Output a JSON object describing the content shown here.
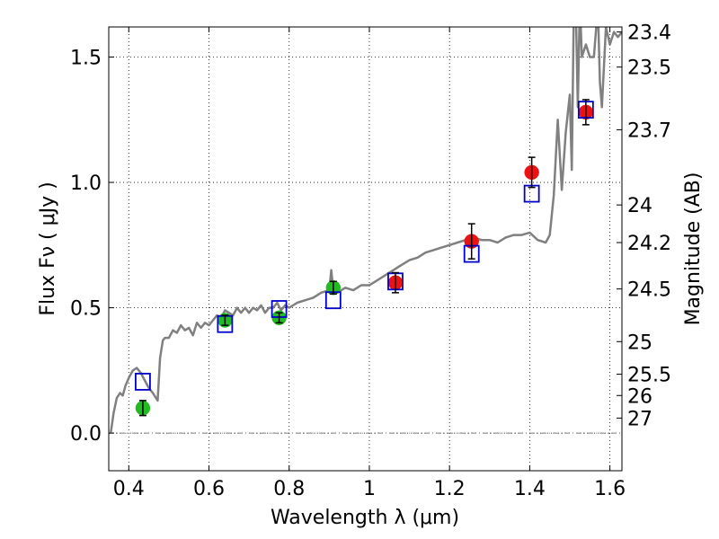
{
  "chart_data": {
    "type": "scatter",
    "xlabel": "Wavelength  λ (μm)",
    "ylabel": "Flux  Fν  ( μJy )",
    "y2label": "Magnitude (AB)",
    "xlim": [
      0.35,
      1.63
    ],
    "ylim": [
      -0.15,
      1.62
    ],
    "xticks": [
      0.4,
      0.6,
      0.8,
      1.0,
      1.2,
      1.4,
      1.6
    ],
    "xtick_labels": [
      "0.4",
      "0.6",
      "0.8",
      "1",
      "1.2",
      "1.4",
      "1.6"
    ],
    "yticks": [
      0.0,
      0.5,
      1.0,
      1.5
    ],
    "ytick_labels": [
      "0.0",
      "0.5",
      "1.0",
      "1.5"
    ],
    "y2ticks": [
      {
        "flux": 1.6,
        "label": "23.4"
      },
      {
        "flux": 1.46,
        "label": "23.5"
      },
      {
        "flux": 1.21,
        "label": "23.7"
      },
      {
        "flux": 0.91,
        "label": "24"
      },
      {
        "flux": 0.76,
        "label": "24.2"
      },
      {
        "flux": 0.575,
        "label": "24.5"
      },
      {
        "flux": 0.365,
        "label": "25"
      },
      {
        "flux": 0.235,
        "label": "25.5"
      },
      {
        "flux": 0.15,
        "label": "26"
      },
      {
        "flux": 0.06,
        "label": "27"
      }
    ],
    "grid": true,
    "colors": {
      "model": "#808080",
      "green": "#22bb22",
      "red": "#ee1111",
      "blue": "#0000cc"
    },
    "model_spectrum": {
      "x": [
        0.355,
        0.362,
        0.37,
        0.378,
        0.385,
        0.392,
        0.4,
        0.41,
        0.42,
        0.43,
        0.44,
        0.45,
        0.46,
        0.468,
        0.472,
        0.478,
        0.485,
        0.49,
        0.5,
        0.51,
        0.52,
        0.53,
        0.54,
        0.55,
        0.56,
        0.57,
        0.58,
        0.59,
        0.6,
        0.61,
        0.62,
        0.63,
        0.64,
        0.65,
        0.66,
        0.67,
        0.68,
        0.69,
        0.7,
        0.71,
        0.72,
        0.73,
        0.74,
        0.75,
        0.76,
        0.77,
        0.78,
        0.79,
        0.8,
        0.82,
        0.84,
        0.86,
        0.88,
        0.9,
        0.905,
        0.91,
        0.92,
        0.94,
        0.96,
        0.98,
        1.0,
        1.02,
        1.04,
        1.06,
        1.08,
        1.1,
        1.12,
        1.14,
        1.16,
        1.18,
        1.2,
        1.22,
        1.24,
        1.26,
        1.28,
        1.3,
        1.32,
        1.34,
        1.36,
        1.38,
        1.4,
        1.42,
        1.44,
        1.45,
        1.46,
        1.47,
        1.48,
        1.49,
        1.5,
        1.505,
        1.51,
        1.515,
        1.52,
        1.525,
        1.53,
        1.54,
        1.55,
        1.56,
        1.57,
        1.575,
        1.58,
        1.59,
        1.6,
        1.61,
        1.62,
        1.63
      ],
      "y": [
        0.0,
        0.08,
        0.14,
        0.16,
        0.15,
        0.19,
        0.22,
        0.25,
        0.26,
        0.24,
        0.21,
        0.18,
        0.16,
        0.14,
        0.13,
        0.3,
        0.37,
        0.38,
        0.38,
        0.41,
        0.4,
        0.43,
        0.41,
        0.42,
        0.39,
        0.44,
        0.42,
        0.44,
        0.43,
        0.45,
        0.47,
        0.46,
        0.49,
        0.48,
        0.47,
        0.5,
        0.48,
        0.5,
        0.48,
        0.5,
        0.49,
        0.51,
        0.48,
        0.5,
        0.5,
        0.52,
        0.49,
        0.51,
        0.5,
        0.52,
        0.53,
        0.54,
        0.56,
        0.57,
        0.65,
        0.57,
        0.56,
        0.58,
        0.57,
        0.59,
        0.59,
        0.61,
        0.63,
        0.65,
        0.67,
        0.69,
        0.7,
        0.72,
        0.73,
        0.74,
        0.75,
        0.76,
        0.77,
        0.78,
        0.77,
        0.77,
        0.76,
        0.78,
        0.79,
        0.79,
        0.8,
        0.77,
        0.76,
        0.79,
        0.95,
        1.25,
        0.97,
        1.2,
        1.35,
        1.05,
        1.7,
        1.7,
        1.3,
        1.72,
        1.5,
        1.55,
        1.5,
        1.5,
        1.7,
        1.4,
        1.3,
        1.62,
        1.55,
        1.6,
        1.58,
        1.6
      ]
    },
    "series": [
      {
        "name": "",
        "marker": "circle",
        "color": "green",
        "x": [
          0.435,
          0.64,
          0.775,
          0.91
        ],
        "y": [
          0.1,
          0.45,
          0.46,
          0.58
        ],
        "err": [
          0.03,
          0.02,
          0.02,
          0.025
        ]
      },
      {
        "name": "",
        "marker": "circle",
        "color": "red",
        "x": [
          1.065,
          1.255,
          1.405,
          1.54
        ],
        "y": [
          0.6,
          0.765,
          1.04,
          1.28
        ],
        "err": [
          0.04,
          0.07,
          0.06,
          0.05
        ]
      },
      {
        "name": "",
        "marker": "square",
        "color": "blue",
        "x": [
          0.435,
          0.64,
          0.775,
          0.91,
          1.065,
          1.255,
          1.405,
          1.54
        ],
        "y": [
          0.205,
          0.435,
          0.495,
          0.53,
          0.605,
          0.715,
          0.955,
          1.29
        ]
      }
    ]
  }
}
